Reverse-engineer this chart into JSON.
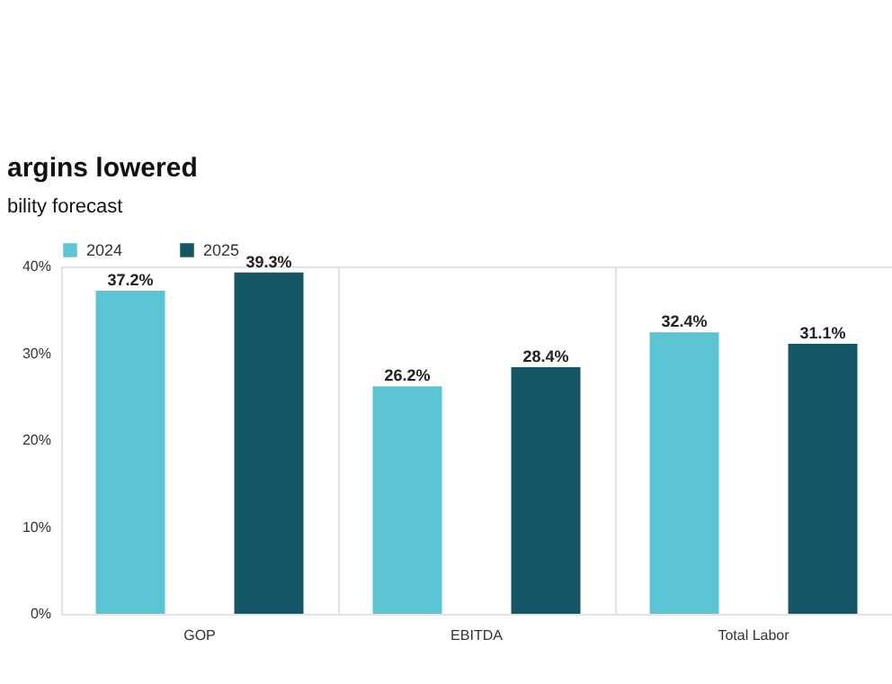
{
  "chart_data": {
    "type": "bar",
    "title": "argins lowered",
    "subtitle": "bility forecast",
    "categories": [
      "GOP",
      "EBITDA",
      "Total Labor"
    ],
    "series": [
      {
        "name": "2024",
        "color": "#5bc5d4",
        "values": [
          37.2,
          26.2,
          32.4
        ],
        "value_labels": [
          "37.2%",
          "26.2%",
          "32.4%"
        ]
      },
      {
        "name": "2025",
        "color": "#145566",
        "values": [
          39.3,
          28.4,
          31.1
        ],
        "value_labels": [
          "39.3%",
          "28.4%",
          "31.1%"
        ]
      }
    ],
    "ylim": [
      0,
      40
    ],
    "yticks": [
      {
        "value": 0,
        "label": "0%"
      },
      {
        "value": 10,
        "label": "10%"
      },
      {
        "value": 20,
        "label": "20%"
      },
      {
        "value": 30,
        "label": "30%"
      },
      {
        "value": 40,
        "label": "40%"
      }
    ],
    "grid": "x",
    "legend": "top left"
  }
}
